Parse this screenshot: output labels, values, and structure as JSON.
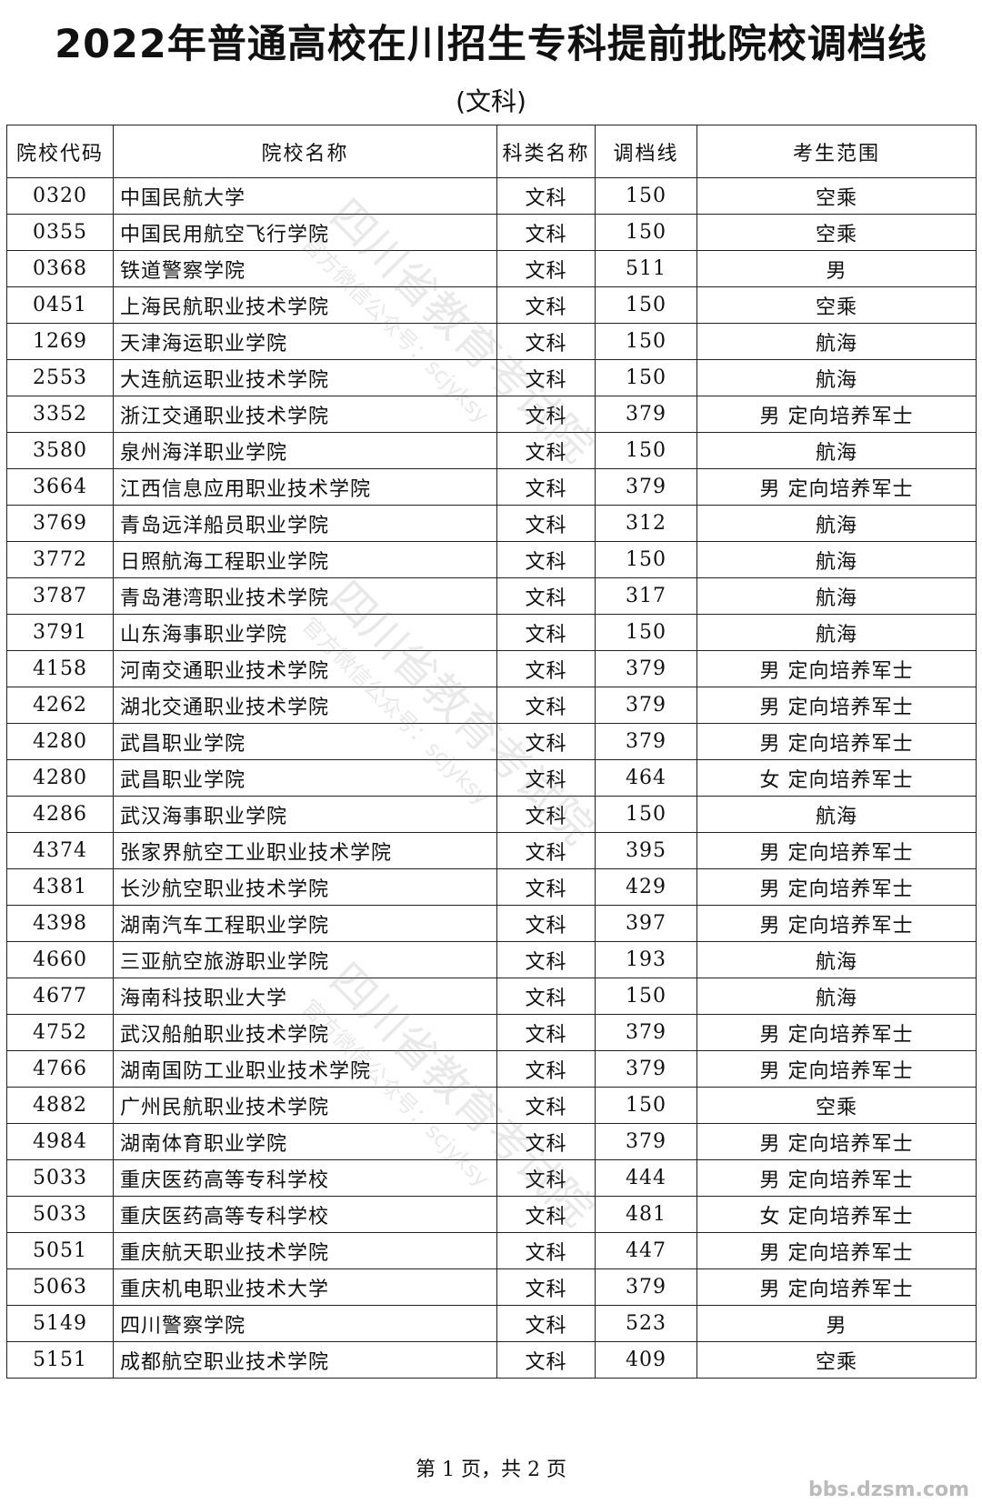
{
  "header": {
    "title": "2022年普通高校在川招生专科提前批院校调档线",
    "subtitle": "(文科)"
  },
  "table": {
    "headers": [
      "院校代码",
      "院校名称",
      "科类名称",
      "调档线",
      "考生范围"
    ],
    "rows": [
      [
        "0320",
        "中国民航大学",
        "文科",
        150,
        "空乘"
      ],
      [
        "0355",
        "中国民用航空飞行学院",
        "文科",
        150,
        "空乘"
      ],
      [
        "0368",
        "铁道警察学院",
        "文科",
        511,
        "男"
      ],
      [
        "0451",
        "上海民航职业技术学院",
        "文科",
        150,
        "空乘"
      ],
      [
        "1269",
        "天津海运职业学院",
        "文科",
        150,
        "航海"
      ],
      [
        "2553",
        "大连航运职业技术学院",
        "文科",
        150,
        "航海"
      ],
      [
        "3352",
        "浙江交通职业技术学院",
        "文科",
        379,
        "男 定向培养军士"
      ],
      [
        "3580",
        "泉州海洋职业学院",
        "文科",
        150,
        "航海"
      ],
      [
        "3664",
        "江西信息应用职业技术学院",
        "文科",
        379,
        "男 定向培养军士"
      ],
      [
        "3769",
        "青岛远洋船员职业学院",
        "文科",
        312,
        "航海"
      ],
      [
        "3772",
        "日照航海工程职业学院",
        "文科",
        150,
        "航海"
      ],
      [
        "3787",
        "青岛港湾职业技术学院",
        "文科",
        317,
        "航海"
      ],
      [
        "3791",
        "山东海事职业学院",
        "文科",
        150,
        "航海"
      ],
      [
        "4158",
        "河南交通职业技术学院",
        "文科",
        379,
        "男 定向培养军士"
      ],
      [
        "4262",
        "湖北交通职业技术学院",
        "文科",
        379,
        "男 定向培养军士"
      ],
      [
        "4280",
        "武昌职业学院",
        "文科",
        379,
        "男 定向培养军士"
      ],
      [
        "4280",
        "武昌职业学院",
        "文科",
        464,
        "女 定向培养军士"
      ],
      [
        "4286",
        "武汉海事职业学院",
        "文科",
        150,
        "航海"
      ],
      [
        "4374",
        "张家界航空工业职业技术学院",
        "文科",
        395,
        "男 定向培养军士"
      ],
      [
        "4381",
        "长沙航空职业技术学院",
        "文科",
        429,
        "男 定向培养军士"
      ],
      [
        "4398",
        "湖南汽车工程职业学院",
        "文科",
        397,
        "男 定向培养军士"
      ],
      [
        "4660",
        "三亚航空旅游职业学院",
        "文科",
        193,
        "航海"
      ],
      [
        "4677",
        "海南科技职业大学",
        "文科",
        150,
        "航海"
      ],
      [
        "4752",
        "武汉船舶职业技术学院",
        "文科",
        379,
        "男 定向培养军士"
      ],
      [
        "4766",
        "湖南国防工业职业技术学院",
        "文科",
        379,
        "男 定向培养军士"
      ],
      [
        "4882",
        "广州民航职业技术学院",
        "文科",
        150,
        "空乘"
      ],
      [
        "4984",
        "湖南体育职业学院",
        "文科",
        379,
        "男 定向培养军士"
      ],
      [
        "5033",
        "重庆医药高等专科学校",
        "文科",
        444,
        "男 定向培养军士"
      ],
      [
        "5033",
        "重庆医药高等专科学校",
        "文科",
        481,
        "女 定向培养军士"
      ],
      [
        "5051",
        "重庆航天职业技术学院",
        "文科",
        447,
        "男 定向培养军士"
      ],
      [
        "5063",
        "重庆机电职业技术大学",
        "文科",
        379,
        "男 定向培养军士"
      ],
      [
        "5149",
        "四川警察学院",
        "文科",
        523,
        "男"
      ],
      [
        "5151",
        "成都航空职业技术学院",
        "文科",
        409,
        "空乘"
      ]
    ]
  },
  "watermark": {
    "name": "四川省教育考试院",
    "note": "官方微信公众号：scjyksy"
  },
  "footer": {
    "page": "第 1 页，共 2 页",
    "site": "bbs.dzsm.com"
  }
}
